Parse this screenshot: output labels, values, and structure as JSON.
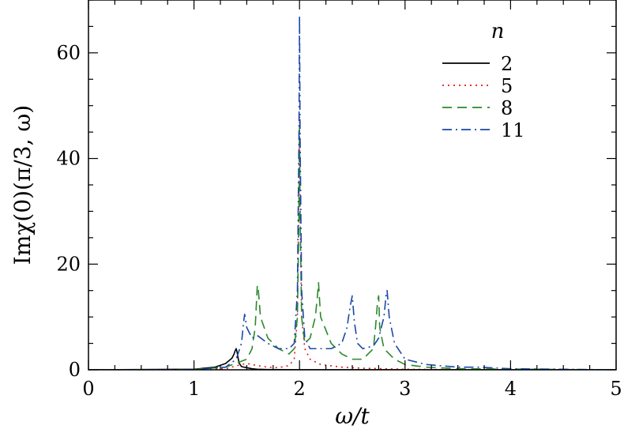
{
  "chart_data": {
    "type": "line",
    "xlabel": "ω/t",
    "ylabel": "Imχ(0)(π/3, ω)",
    "xlim": [
      0,
      5
    ],
    "ylim": [
      0,
      70
    ],
    "xticks": [
      "0",
      "1",
      "2",
      "3",
      "4",
      "5"
    ],
    "yticks": [
      "0",
      "20",
      "40",
      "60"
    ],
    "legend_title": "n",
    "legend_position": "top-right",
    "grid": false,
    "series": [
      {
        "name": "2",
        "color": "#000000",
        "dash": "solid",
        "x": [
          0.0,
          1.0,
          1.2,
          1.3,
          1.36,
          1.38,
          1.39,
          1.4,
          1.41,
          1.42,
          1.43,
          1.45,
          1.5,
          1.55,
          1.6,
          1.7,
          2.0,
          5.0
        ],
        "y": [
          0,
          0.1,
          0.5,
          1.2,
          2.2,
          3.0,
          3.6,
          4.0,
          3.2,
          2.0,
          1.2,
          0.6,
          0.4,
          0.2,
          0.1,
          0.05,
          0.02,
          0
        ]
      },
      {
        "name": "5",
        "color": "#e01a1a",
        "dash": "dotted",
        "x": [
          0.0,
          1.0,
          1.3,
          1.45,
          1.5,
          1.6,
          1.7,
          1.8,
          1.9,
          1.95,
          1.98,
          1.995,
          2.0,
          2.005,
          2.02,
          2.05,
          2.1,
          2.2,
          2.4,
          2.6,
          3.0,
          3.5,
          5.0
        ],
        "y": [
          0,
          0.05,
          0.2,
          1.0,
          1.2,
          0.8,
          0.5,
          0.4,
          0.8,
          2.0,
          10.0,
          35.0,
          48.0,
          30.0,
          10.0,
          4.0,
          2.0,
          1.0,
          0.5,
          0.3,
          0.1,
          0.05,
          0
        ]
      },
      {
        "name": "8",
        "color": "#2a8a2a",
        "dash": "dashed",
        "x": [
          0.0,
          1.0,
          1.3,
          1.5,
          1.55,
          1.58,
          1.6,
          1.61,
          1.63,
          1.7,
          1.8,
          1.9,
          1.95,
          1.98,
          1.995,
          2.0,
          2.005,
          2.02,
          2.05,
          2.1,
          2.15,
          2.17,
          2.18,
          2.2,
          2.3,
          2.4,
          2.5,
          2.6,
          2.7,
          2.72,
          2.74,
          2.75,
          2.76,
          2.8,
          2.9,
          3.0,
          3.2,
          3.5,
          5.0
        ],
        "y": [
          0,
          0.05,
          0.5,
          2.0,
          4.0,
          8.0,
          16.0,
          15.0,
          10.0,
          6.0,
          4.0,
          3.0,
          4.0,
          10.0,
          30.0,
          46.0,
          30.0,
          10.0,
          5.0,
          6.0,
          10.0,
          14.0,
          16.5,
          10.0,
          5.0,
          3.0,
          2.0,
          2.0,
          4.0,
          8.0,
          13.0,
          14.0,
          8.0,
          4.0,
          2.0,
          1.0,
          0.5,
          0.2,
          0
        ]
      },
      {
        "name": "11",
        "color": "#1a48a8",
        "dash": "dashdot",
        "x": [
          0.0,
          1.0,
          1.3,
          1.4,
          1.45,
          1.47,
          1.48,
          1.5,
          1.55,
          1.6,
          1.7,
          1.8,
          1.9,
          1.95,
          1.98,
          1.995,
          2.0,
          2.005,
          2.02,
          2.05,
          2.1,
          2.2,
          2.3,
          2.4,
          2.45,
          2.48,
          2.5,
          2.52,
          2.55,
          2.6,
          2.7,
          2.75,
          2.8,
          2.82,
          2.83,
          2.85,
          2.9,
          3.0,
          3.2,
          3.5,
          3.7,
          4.0,
          5.0
        ],
        "y": [
          0,
          0.05,
          0.5,
          2.0,
          5.0,
          9.0,
          10.5,
          8.0,
          6.0,
          6.5,
          5.0,
          4.0,
          4.0,
          5.0,
          15.0,
          45.0,
          67.0,
          45.0,
          15.0,
          6.0,
          4.0,
          4.0,
          4.0,
          5.0,
          8.0,
          12.0,
          14.0,
          9.0,
          5.0,
          4.0,
          4.5,
          6.0,
          10.0,
          14.0,
          15.0,
          10.0,
          5.0,
          2.0,
          1.0,
          0.5,
          0.5,
          0.2,
          0
        ]
      }
    ]
  }
}
